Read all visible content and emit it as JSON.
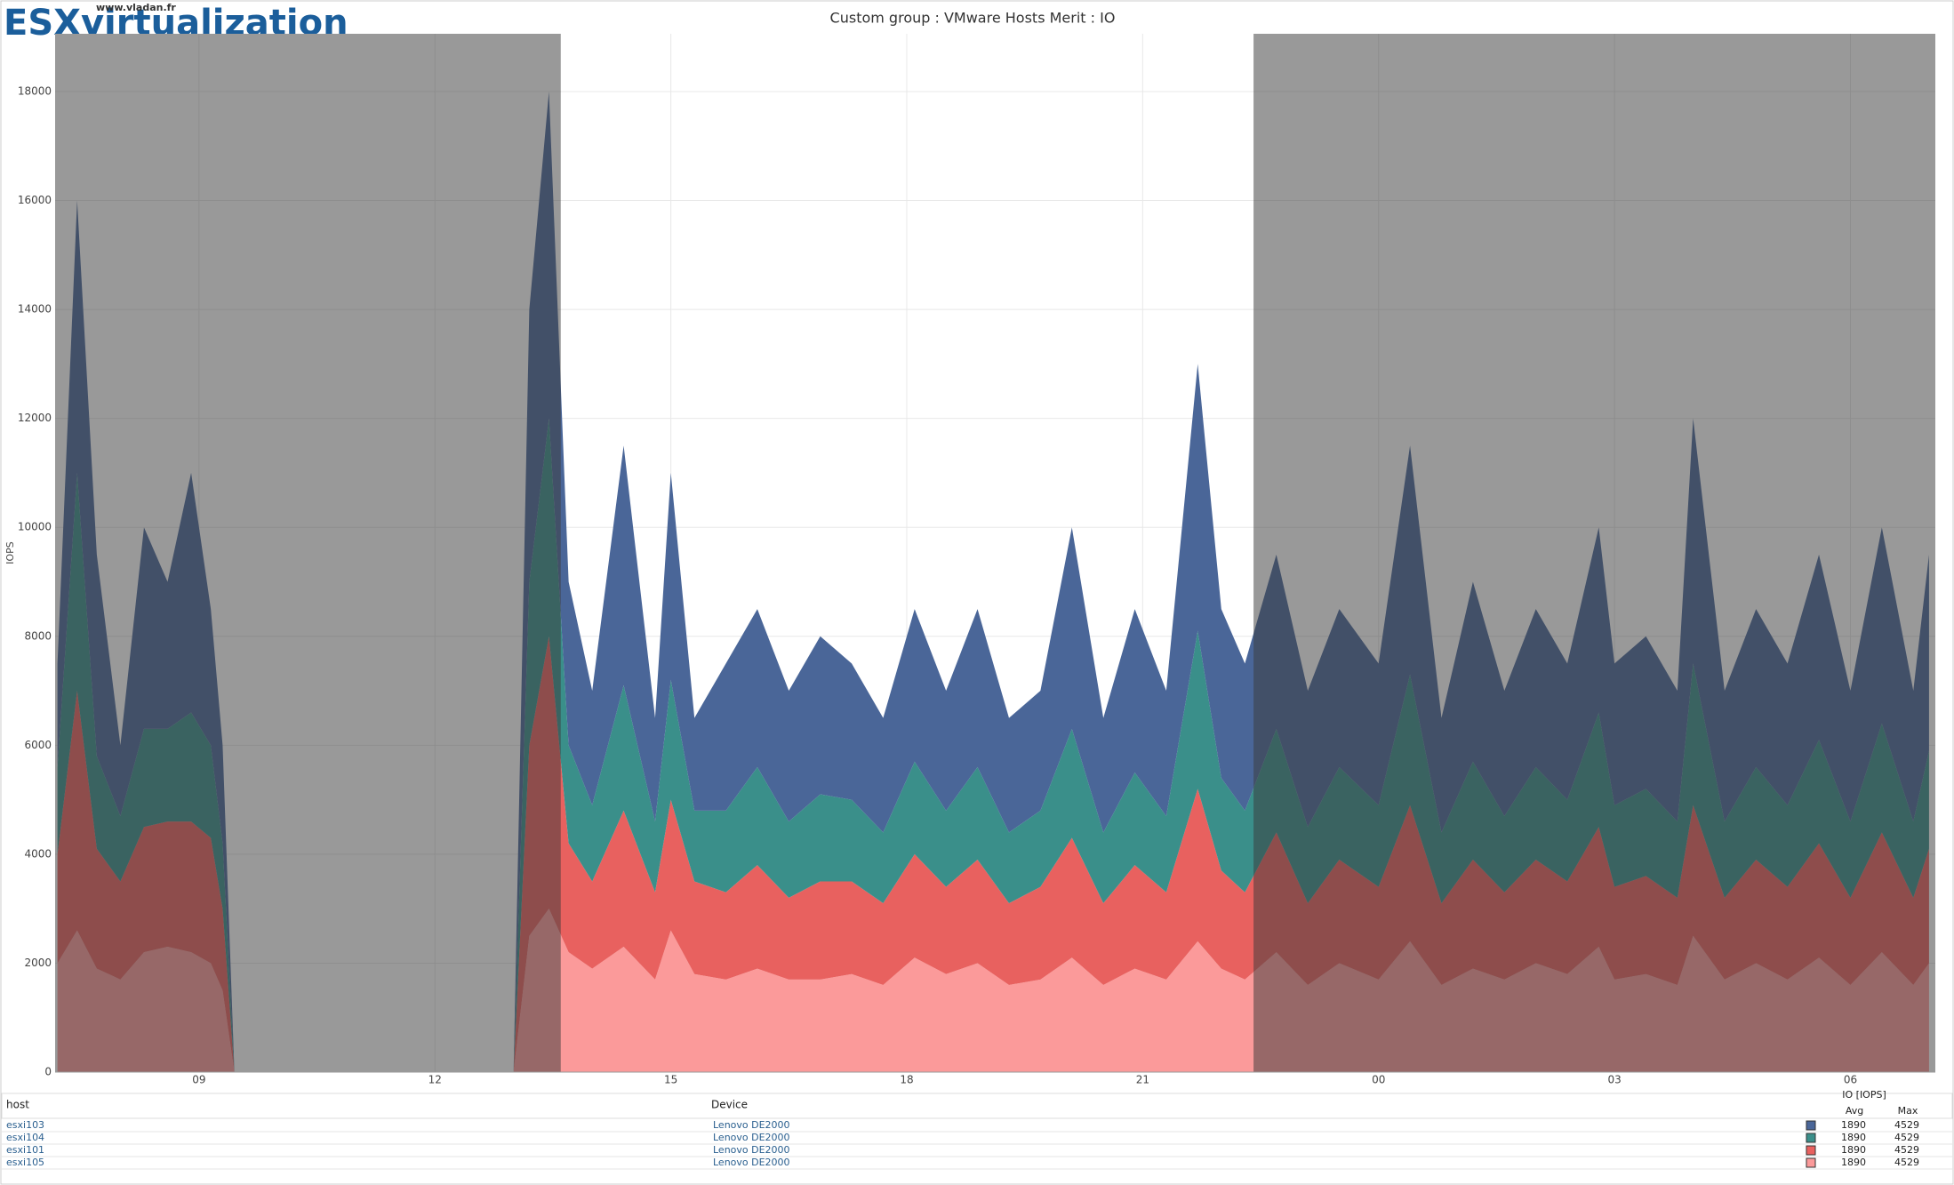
{
  "watermark": {
    "brand": "ESXvirtualization",
    "url": "www.vladan.fr"
  },
  "chart_data": {
    "type": "stacked-area",
    "title": "Custom group : VMware Hosts Merit : IO",
    "y_label": "IOPS",
    "x": [
      7.2,
      7.45,
      7.7,
      8.0,
      8.3,
      8.6,
      8.9,
      9.15,
      9.3,
      9.45,
      10.5,
      11.5,
      12.5,
      13.0,
      13.2,
      13.45,
      13.7,
      14.0,
      14.4,
      14.8,
      15.0,
      15.3,
      15.7,
      16.1,
      16.5,
      16.9,
      17.3,
      17.7,
      18.1,
      18.5,
      18.9,
      19.3,
      19.7,
      20.1,
      20.5,
      20.9,
      21.3,
      21.7,
      22.0,
      22.3,
      22.7,
      23.1,
      23.5,
      24.0,
      24.4,
      24.8,
      25.2,
      25.6,
      26.0,
      26.4,
      26.8,
      27.0,
      27.4,
      27.8,
      28.0,
      28.4,
      28.8,
      29.2,
      29.6,
      30.0,
      30.4,
      30.8,
      31.0
    ],
    "series": [
      {
        "name": "esxi103",
        "color": "#4a6698",
        "values": [
          1900,
          5000,
          3700,
          1300,
          3700,
          2700,
          4400,
          2500,
          1800,
          0,
          0,
          0,
          0,
          0,
          5000,
          6000,
          3000,
          2100,
          4400,
          1900,
          3800,
          1700,
          2700,
          2900,
          2400,
          2900,
          2500,
          2100,
          2800,
          2200,
          2900,
          2100,
          2200,
          3700,
          2100,
          3000,
          2300,
          4900,
          3100,
          2700,
          3200,
          2500,
          2900,
          2600,
          4200,
          2100,
          3300,
          2300,
          2900,
          2500,
          3400,
          2600,
          2800,
          2400,
          4500,
          2400,
          2900,
          2600,
          3400,
          2400,
          3600,
          2400,
          3600
        ]
      },
      {
        "name": "esxi104",
        "color": "#3a8f8a",
        "values": [
          1600,
          4000,
          1700,
          1200,
          1800,
          1700,
          2000,
          1700,
          1200,
          0,
          0,
          0,
          0,
          0,
          3000,
          4000,
          1800,
          1400,
          2300,
          1300,
          2200,
          1300,
          1500,
          1800,
          1400,
          1600,
          1500,
          1300,
          1700,
          1400,
          1700,
          1300,
          1400,
          2000,
          1300,
          1700,
          1400,
          2900,
          1700,
          1500,
          1900,
          1400,
          1700,
          1500,
          2400,
          1300,
          1800,
          1400,
          1700,
          1500,
          2100,
          1500,
          1600,
          1400,
          2600,
          1400,
          1700,
          1500,
          1900,
          1400,
          2000,
          1400,
          1800
        ]
      },
      {
        "name": "esxi101",
        "color": "#e8615f",
        "values": [
          2000,
          4400,
          2200,
          1800,
          2300,
          2300,
          2400,
          2300,
          1500,
          0,
          0,
          0,
          0,
          0,
          3500,
          5000,
          2000,
          1600,
          2500,
          1600,
          2400,
          1700,
          1600,
          1900,
          1500,
          1800,
          1700,
          1500,
          1900,
          1600,
          1900,
          1500,
          1700,
          2200,
          1500,
          1900,
          1600,
          2800,
          1800,
          1600,
          2200,
          1500,
          1900,
          1700,
          2500,
          1500,
          2000,
          1600,
          1900,
          1700,
          2200,
          1700,
          1800,
          1600,
          2400,
          1500,
          1900,
          1700,
          2100,
          1600,
          2200,
          1600,
          2100
        ]
      },
      {
        "name": "esxi105",
        "color": "#fb9a9a",
        "values": [
          2000,
          2600,
          1900,
          1700,
          2200,
          2300,
          2200,
          2000,
          1500,
          0,
          0,
          0,
          0,
          0,
          2500,
          3000,
          2200,
          1900,
          2300,
          1700,
          2600,
          1800,
          1700,
          1900,
          1700,
          1700,
          1800,
          1600,
          2100,
          1800,
          2000,
          1600,
          1700,
          2100,
          1600,
          1900,
          1700,
          2400,
          1900,
          1700,
          2200,
          1600,
          2000,
          1700,
          2400,
          1600,
          1900,
          1700,
          2000,
          1800,
          2300,
          1700,
          1800,
          1600,
          2500,
          1700,
          2000,
          1700,
          2100,
          1600,
          2200,
          1600,
          2000
        ]
      }
    ],
    "xlim": [
      7.17,
      31.08
    ],
    "xticks": [
      {
        "value": 9,
        "label": "09"
      },
      12,
      15,
      18,
      21,
      {
        "value": 24,
        "label": "00"
      },
      {
        "value": 27,
        "label": "03"
      },
      {
        "value": 30,
        "label": "06"
      }
    ],
    "ylim": [
      0,
      19060
    ],
    "yticks": [
      0,
      2000,
      4000,
      6000,
      8000,
      10000,
      12000,
      14000,
      16000,
      18000
    ],
    "grid": true,
    "selection": [
      13.6,
      22.41
    ]
  },
  "table": {
    "columns": [
      "host",
      "Device"
    ],
    "metric": "IO [IOPS]",
    "stats": [
      "Avg",
      "Max"
    ],
    "rows": [
      [
        "esxi103",
        "Lenovo DE2000",
        1890,
        4529
      ],
      [
        "esxi104",
        "Lenovo DE2000",
        1890,
        4529
      ],
      [
        "esxi101",
        "Lenovo DE2000",
        1890,
        4529
      ],
      [
        "esxi105",
        "Lenovo DE2000",
        1890,
        4529
      ]
    ]
  }
}
